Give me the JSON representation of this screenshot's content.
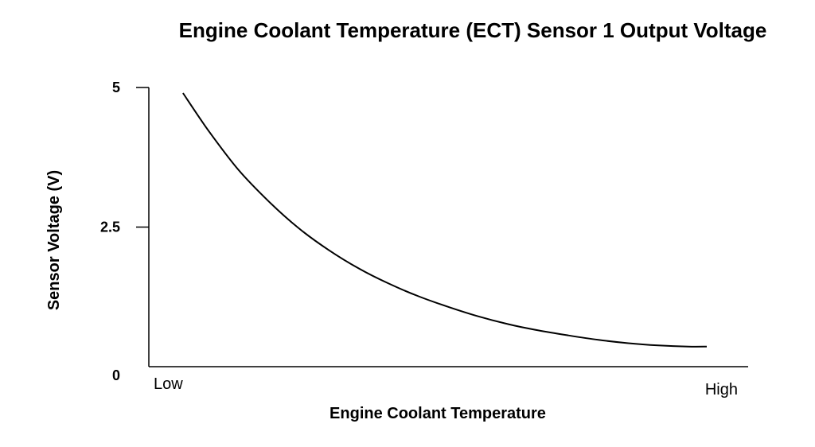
{
  "chart_data": {
    "type": "line",
    "title": "Engine Coolant Temperature (ECT) Sensor 1 Output Voltage",
    "xlabel": "Engine Coolant Temperature",
    "ylabel": "Sensor Voltage (V)",
    "x_start_label": "Low",
    "x_end_label": "High",
    "xlim": [
      0,
      100
    ],
    "ylim": [
      0,
      5
    ],
    "y_ticks": [
      {
        "value": 5,
        "label": "5"
      },
      {
        "value": 2.5,
        "label": "2.5"
      },
      {
        "value": 0,
        "label": "0"
      }
    ],
    "grid": false,
    "series": [
      {
        "x": [
          5.7,
          10,
          15,
          20,
          25,
          30,
          35,
          40,
          45,
          50,
          55,
          60,
          65,
          70,
          75,
          80,
          85,
          90,
          93.1
        ],
        "y": [
          4.9,
          4.22,
          3.52,
          2.96,
          2.48,
          2.09,
          1.76,
          1.49,
          1.26,
          1.07,
          0.9,
          0.76,
          0.65,
          0.56,
          0.48,
          0.42,
          0.38,
          0.36,
          0.36
        ],
        "color": "#000000"
      }
    ]
  }
}
